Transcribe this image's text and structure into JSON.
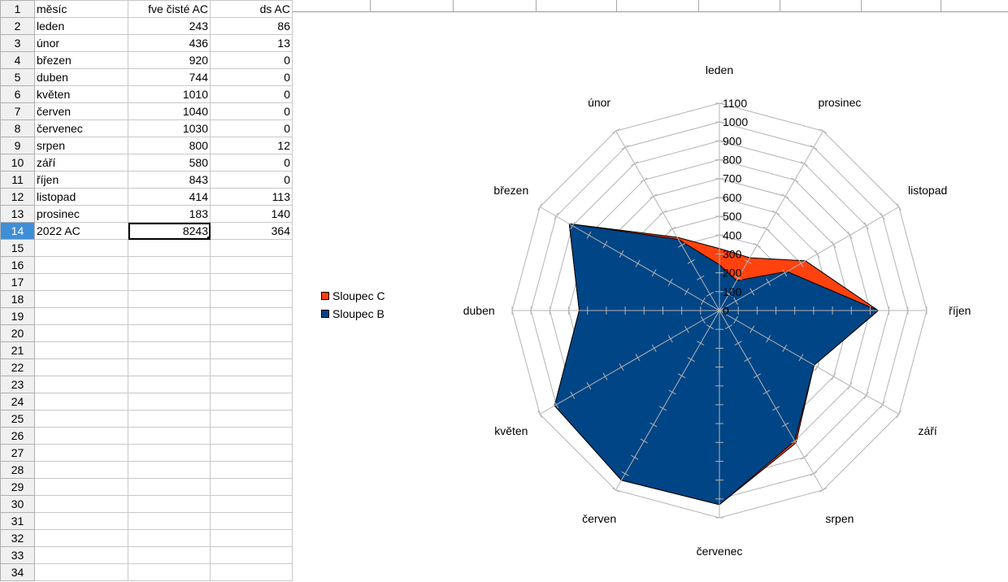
{
  "sheet": {
    "rows": [
      {
        "n": "1",
        "a": "měsíc",
        "b": "fve čisté AC",
        "c": "ds AC"
      },
      {
        "n": "2",
        "a": "leden",
        "b": "243",
        "c": "86"
      },
      {
        "n": "3",
        "a": "únor",
        "b": "436",
        "c": "13"
      },
      {
        "n": "4",
        "a": "březen",
        "b": "920",
        "c": "0"
      },
      {
        "n": "5",
        "a": "duben",
        "b": "744",
        "c": "0"
      },
      {
        "n": "6",
        "a": "květen",
        "b": "1010",
        "c": "0"
      },
      {
        "n": "7",
        "a": "červen",
        "b": "1040",
        "c": "0"
      },
      {
        "n": "8",
        "a": "červenec",
        "b": "1030",
        "c": "0"
      },
      {
        "n": "9",
        "a": "srpen",
        "b": "800",
        "c": "12"
      },
      {
        "n": "10",
        "a": "září",
        "b": "580",
        "c": "0"
      },
      {
        "n": "11",
        "a": "říjen",
        "b": "843",
        "c": "0"
      },
      {
        "n": "12",
        "a": "listopad",
        "b": "414",
        "c": "113"
      },
      {
        "n": "13",
        "a": "prosinec",
        "b": "183",
        "c": "140"
      },
      {
        "n": "14",
        "a": "2022 AC",
        "b": "8243",
        "c": "364"
      },
      {
        "n": "15",
        "a": "",
        "b": "",
        "c": ""
      },
      {
        "n": "16",
        "a": "",
        "b": "",
        "c": ""
      },
      {
        "n": "17",
        "a": "",
        "b": "",
        "c": ""
      },
      {
        "n": "18",
        "a": "",
        "b": "",
        "c": ""
      },
      {
        "n": "19",
        "a": "",
        "b": "",
        "c": ""
      },
      {
        "n": "20",
        "a": "",
        "b": "",
        "c": ""
      },
      {
        "n": "21",
        "a": "",
        "b": "",
        "c": ""
      },
      {
        "n": "22",
        "a": "",
        "b": "",
        "c": ""
      },
      {
        "n": "23",
        "a": "",
        "b": "",
        "c": ""
      },
      {
        "n": "24",
        "a": "",
        "b": "",
        "c": ""
      },
      {
        "n": "25",
        "a": "",
        "b": "",
        "c": ""
      },
      {
        "n": "26",
        "a": "",
        "b": "",
        "c": ""
      },
      {
        "n": "27",
        "a": "",
        "b": "",
        "c": ""
      },
      {
        "n": "28",
        "a": "",
        "b": "",
        "c": ""
      },
      {
        "n": "29",
        "a": "",
        "b": "",
        "c": ""
      },
      {
        "n": "30",
        "a": "",
        "b": "",
        "c": ""
      },
      {
        "n": "31",
        "a": "",
        "b": "",
        "c": ""
      },
      {
        "n": "32",
        "a": "",
        "b": "",
        "c": ""
      },
      {
        "n": "33",
        "a": "",
        "b": "",
        "c": ""
      },
      {
        "n": "34",
        "a": "",
        "b": "",
        "c": ""
      }
    ],
    "selected_row": "14",
    "selected_cell": "B14"
  },
  "colors": {
    "series_b": "#004586",
    "series_c": "#ff420e",
    "grid": "#b3b3b3",
    "row_header_selected": "#3f8fd8"
  },
  "chart_data": {
    "type": "radar",
    "categories": [
      "leden",
      "prosinec",
      "listopad",
      "říjen",
      "září",
      "srpen",
      "červenec",
      "červen",
      "květen",
      "duben",
      "březen",
      "únor"
    ],
    "series": [
      {
        "name": "Sloupec C",
        "color": "#ff420e",
        "values": [
          329,
          323,
          527,
          843,
          580,
          812,
          1030,
          1040,
          1010,
          744,
          920,
          449
        ]
      },
      {
        "name": "Sloupec B",
        "color": "#004586",
        "values": [
          243,
          183,
          414,
          843,
          580,
          800,
          1030,
          1040,
          1010,
          744,
          920,
          436
        ]
      }
    ],
    "ticks": [
      "0",
      "100",
      "200",
      "300",
      "400",
      "500",
      "600",
      "700",
      "800",
      "900",
      "1000",
      "1100"
    ],
    "ylim": [
      0,
      1100
    ],
    "legend": {
      "position": "left",
      "items": [
        "Sloupec C",
        "Sloupec B"
      ]
    },
    "grid": true
  }
}
